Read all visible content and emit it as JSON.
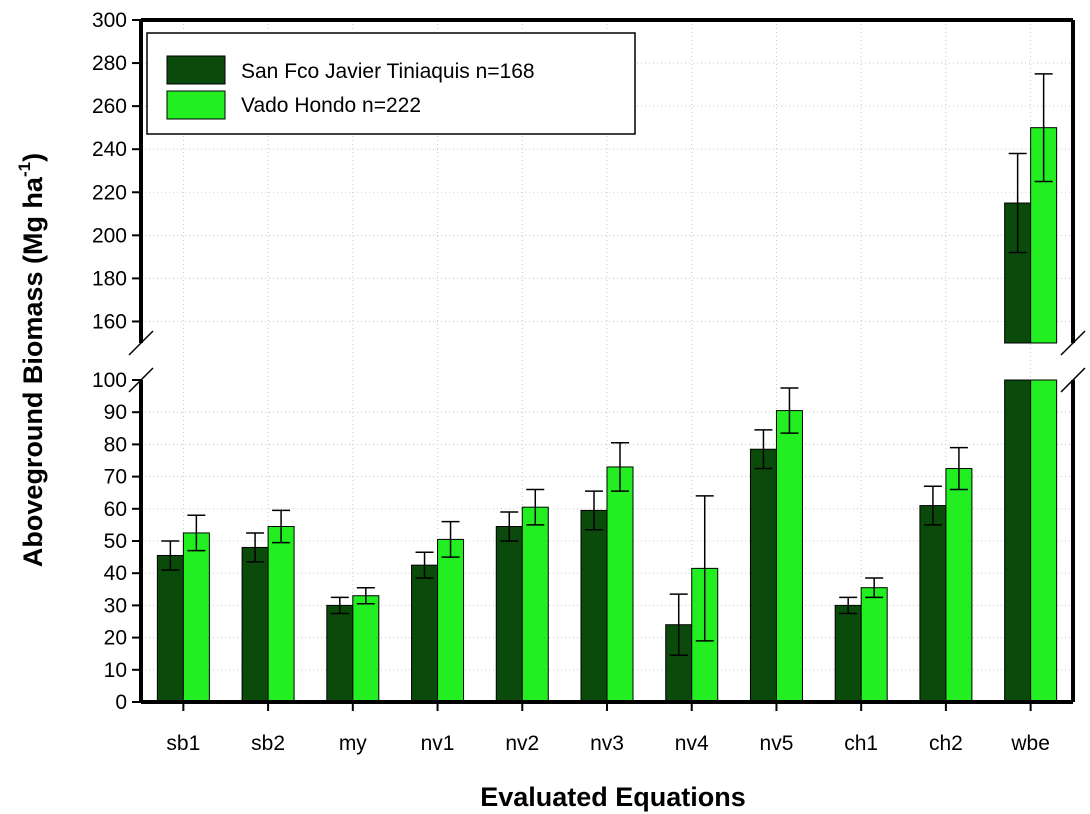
{
  "chart_data": {
    "type": "bar",
    "xlabel": "Evaluated Equations",
    "ylabel_main": "Aboveground Biomass (Mg ha",
    "ylabel_sup": "-1",
    "ylabel_close": ")",
    "categories": [
      "sb1",
      "sb2",
      "my",
      "nv1",
      "nv2",
      "nv3",
      "nv4",
      "nv5",
      "ch1",
      "ch2",
      "wbe"
    ],
    "series": [
      {
        "name": "San Fco Javier Tiniaquis n=168",
        "color": "#0a4a0a",
        "values": [
          45.5,
          48,
          30,
          42.5,
          54.5,
          59.5,
          24,
          78.5,
          30,
          61,
          215
        ],
        "errors": [
          4.5,
          4.5,
          2.5,
          4,
          4.5,
          6,
          9.5,
          6,
          2.5,
          6,
          23
        ]
      },
      {
        "name": "Vado Hondo n=222",
        "color": "#22ee22",
        "values": [
          52.5,
          54.5,
          33,
          50.5,
          60.5,
          73,
          41.5,
          90.5,
          35.5,
          72.5,
          250
        ],
        "errors": [
          5.5,
          5,
          2.5,
          5.5,
          5.5,
          7.5,
          22.5,
          7,
          3,
          6.5,
          25
        ]
      }
    ],
    "y_lower": {
      "range": [
        0,
        100
      ],
      "ticks": [
        0,
        10,
        20,
        30,
        40,
        50,
        60,
        70,
        80,
        90,
        100
      ]
    },
    "y_upper": {
      "range": [
        150,
        300
      ],
      "ticks": [
        160,
        180,
        200,
        220,
        240,
        260,
        280,
        300
      ]
    },
    "axis_break": true,
    "grid": true,
    "legend_position": "top-left"
  }
}
